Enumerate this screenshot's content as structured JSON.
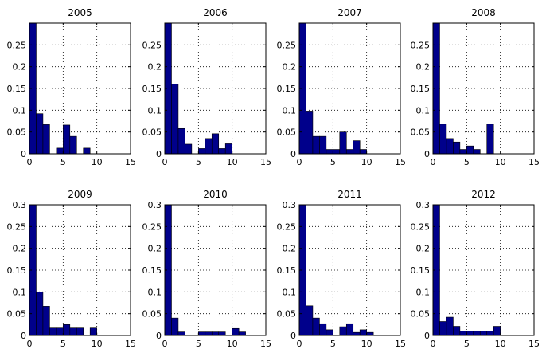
{
  "chart_data": [
    {
      "type": "bar",
      "title": "2005",
      "xlim": [
        0,
        15
      ],
      "ylim": [
        0,
        0.3
      ],
      "xticks": [
        "0",
        "5",
        "10",
        "15"
      ],
      "yticks": [
        "0",
        "0.05",
        "0.1",
        "0.15",
        "0.2",
        "0.25"
      ],
      "grid": true,
      "x": [
        0,
        1,
        2,
        3,
        4,
        5,
        6,
        7,
        8,
        9,
        10,
        11,
        12,
        13
      ],
      "values": [
        0.3,
        0.092,
        0.067,
        0,
        0.013,
        0.066,
        0.04,
        0,
        0.013,
        0,
        0,
        0,
        0,
        0
      ]
    },
    {
      "type": "bar",
      "title": "2006",
      "xlim": [
        0,
        15
      ],
      "ylim": [
        0,
        0.3
      ],
      "xticks": [
        "0",
        "5",
        "10",
        "15"
      ],
      "yticks": [
        "0",
        "0.05",
        "0.1",
        "0.15",
        "0.2",
        "0.25"
      ],
      "grid": true,
      "x": [
        0,
        1,
        2,
        3,
        4,
        5,
        6,
        7,
        8,
        9,
        10,
        11,
        12,
        13
      ],
      "values": [
        0.3,
        0.16,
        0.058,
        0.022,
        0,
        0.012,
        0.035,
        0.046,
        0.012,
        0.023,
        0,
        0,
        0,
        0
      ]
    },
    {
      "type": "bar",
      "title": "2007",
      "xlim": [
        0,
        15
      ],
      "ylim": [
        0,
        0.3
      ],
      "xticks": [
        "0",
        "5",
        "10",
        "15"
      ],
      "yticks": [
        "0",
        "0.05",
        "0.1",
        "0.15",
        "0.2",
        "0.25"
      ],
      "grid": true,
      "x": [
        0,
        1,
        2,
        3,
        4,
        5,
        6,
        7,
        8,
        9,
        10,
        11,
        12,
        13
      ],
      "values": [
        0.3,
        0.098,
        0.04,
        0.04,
        0.01,
        0.01,
        0.05,
        0.01,
        0.03,
        0.01,
        0,
        0,
        0,
        0
      ]
    },
    {
      "type": "bar",
      "title": "2008",
      "xlim": [
        0,
        15
      ],
      "ylim": [
        0,
        0.3
      ],
      "xticks": [
        "0",
        "5",
        "10",
        "15"
      ],
      "yticks": [
        "0",
        "0.05",
        "0.1",
        "0.15",
        "0.2",
        "0.25"
      ],
      "grid": true,
      "x": [
        0,
        1,
        2,
        3,
        4,
        5,
        6,
        7,
        8,
        9,
        10,
        11,
        12,
        13
      ],
      "values": [
        0.3,
        0.068,
        0.035,
        0.027,
        0.01,
        0.018,
        0.01,
        0,
        0.068,
        0,
        0,
        0,
        0,
        0
      ]
    },
    {
      "type": "bar",
      "title": "2009",
      "xlim": [
        0,
        15
      ],
      "ylim": [
        0,
        0.3
      ],
      "xticks": [
        "0",
        "5",
        "10",
        "15"
      ],
      "yticks": [
        "0",
        "0.05",
        "0.1",
        "0.15",
        "0.2",
        "0.25",
        "0.3"
      ],
      "grid": true,
      "x": [
        0,
        1,
        2,
        3,
        4,
        5,
        6,
        7,
        8,
        9,
        10,
        11,
        12,
        13
      ],
      "values": [
        0.3,
        0.1,
        0.067,
        0.017,
        0.017,
        0.025,
        0.017,
        0.017,
        0,
        0.017,
        0,
        0,
        0,
        0
      ]
    },
    {
      "type": "bar",
      "title": "2010",
      "xlim": [
        0,
        15
      ],
      "ylim": [
        0,
        0.3
      ],
      "xticks": [
        "0",
        "5",
        "10",
        "15"
      ],
      "yticks": [
        "0",
        "0.05",
        "0.1",
        "0.15",
        "0.2",
        "0.25",
        "0.3"
      ],
      "grid": true,
      "x": [
        0,
        1,
        2,
        3,
        4,
        5,
        6,
        7,
        8,
        9,
        10,
        11,
        12,
        13
      ],
      "values": [
        0.3,
        0.04,
        0.008,
        0,
        0,
        0.008,
        0.008,
        0.008,
        0.008,
        0,
        0.016,
        0.008,
        0,
        0
      ]
    },
    {
      "type": "bar",
      "title": "2011",
      "xlim": [
        0,
        15
      ],
      "ylim": [
        0,
        0.3
      ],
      "xticks": [
        "0",
        "5",
        "10",
        "15"
      ],
      "yticks": [
        "0",
        "0.05",
        "0.1",
        "0.15",
        "0.2",
        "0.25",
        "0.3"
      ],
      "grid": true,
      "x": [
        0,
        1,
        2,
        3,
        4,
        5,
        6,
        7,
        8,
        9,
        10,
        11,
        12,
        13
      ],
      "values": [
        0.3,
        0.068,
        0.04,
        0.027,
        0.013,
        0,
        0.02,
        0.027,
        0.007,
        0.013,
        0.007,
        0,
        0,
        0
      ]
    },
    {
      "type": "bar",
      "title": "2012",
      "xlim": [
        0,
        15
      ],
      "ylim": [
        0,
        0.3
      ],
      "xticks": [
        "0",
        "5",
        "10",
        "15"
      ],
      "yticks": [
        "0",
        "0.05",
        "0.1",
        "0.15",
        "0.2",
        "0.25",
        "0.3"
      ],
      "grid": true,
      "x": [
        0,
        1,
        2,
        3,
        4,
        5,
        6,
        7,
        8,
        9,
        10,
        11,
        12,
        13
      ],
      "values": [
        0.3,
        0.032,
        0.042,
        0.021,
        0.01,
        0.01,
        0.01,
        0.01,
        0.01,
        0.021,
        0,
        0,
        0,
        0
      ]
    }
  ],
  "colors": {
    "bar": "#00008B",
    "axes": "#000000",
    "background": "#ffffff"
  }
}
